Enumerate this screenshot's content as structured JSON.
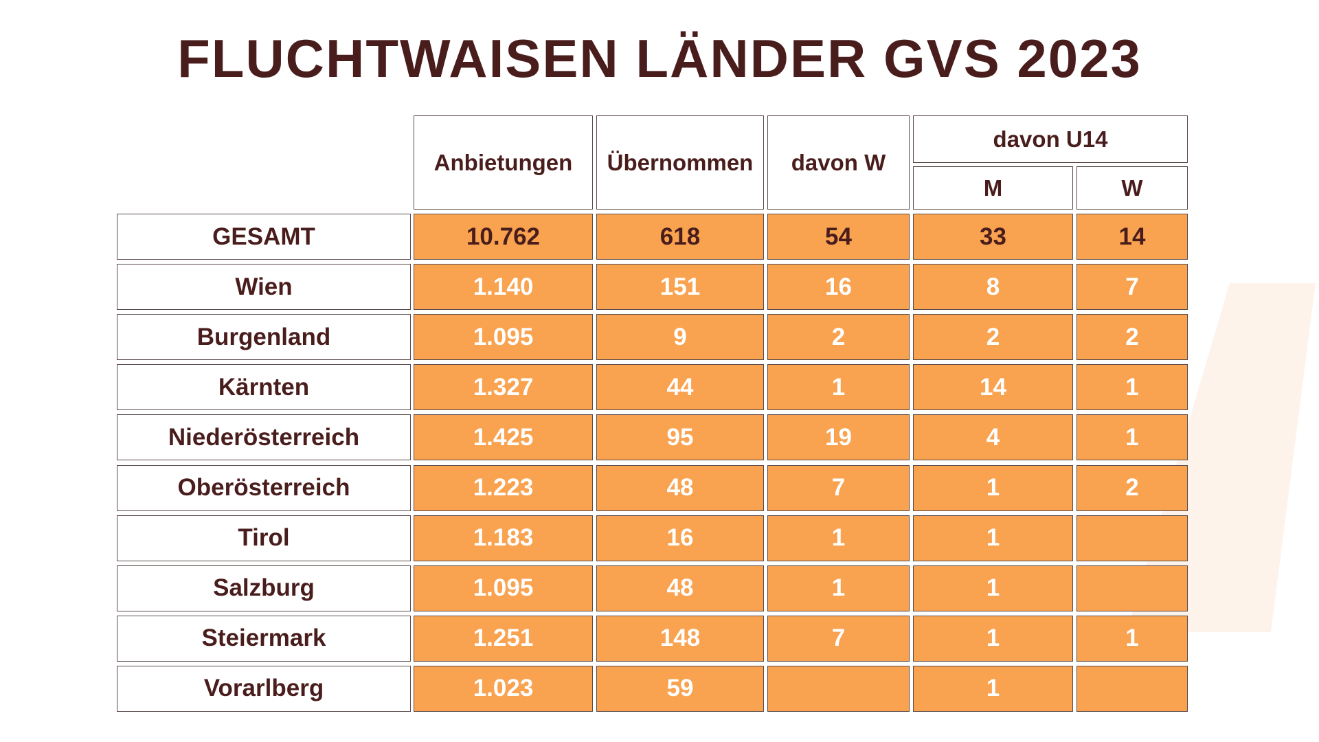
{
  "title": "FLUCHTWAISEN LÄNDER GVS 2023",
  "table": {
    "header": [
      "Anbietungen",
      "Übernommen",
      "davon W",
      "davon U14"
    ],
    "subheader": [
      "M",
      "W"
    ],
    "rows": [
      [
        "GESAMT",
        "10.762",
        "618",
        "54",
        "33",
        "14"
      ],
      [
        "Wien",
        "1.140",
        "151",
        "16",
        "8",
        "7"
      ],
      [
        "Burgenland",
        "1.095",
        "9",
        "2",
        "2",
        "2"
      ],
      [
        "Kärnten",
        "1.327",
        "44",
        "1",
        "14",
        "1"
      ],
      [
        "Niederösterreich",
        "1.425",
        "95",
        "19",
        "4",
        "1"
      ],
      [
        "Oberösterreich",
        "1.223",
        "48",
        "7",
        "1",
        "2"
      ],
      [
        "Tirol",
        "1.183",
        "16",
        "1",
        "1",
        null
      ],
      [
        "Salzburg",
        "1.095",
        "48",
        "1",
        "1",
        null
      ],
      [
        "Steiermark",
        "1.251",
        "148",
        "7",
        "1",
        "1"
      ],
      [
        "Vorarlberg",
        "1.023",
        "59",
        null,
        "1",
        null
      ]
    ]
  }
}
